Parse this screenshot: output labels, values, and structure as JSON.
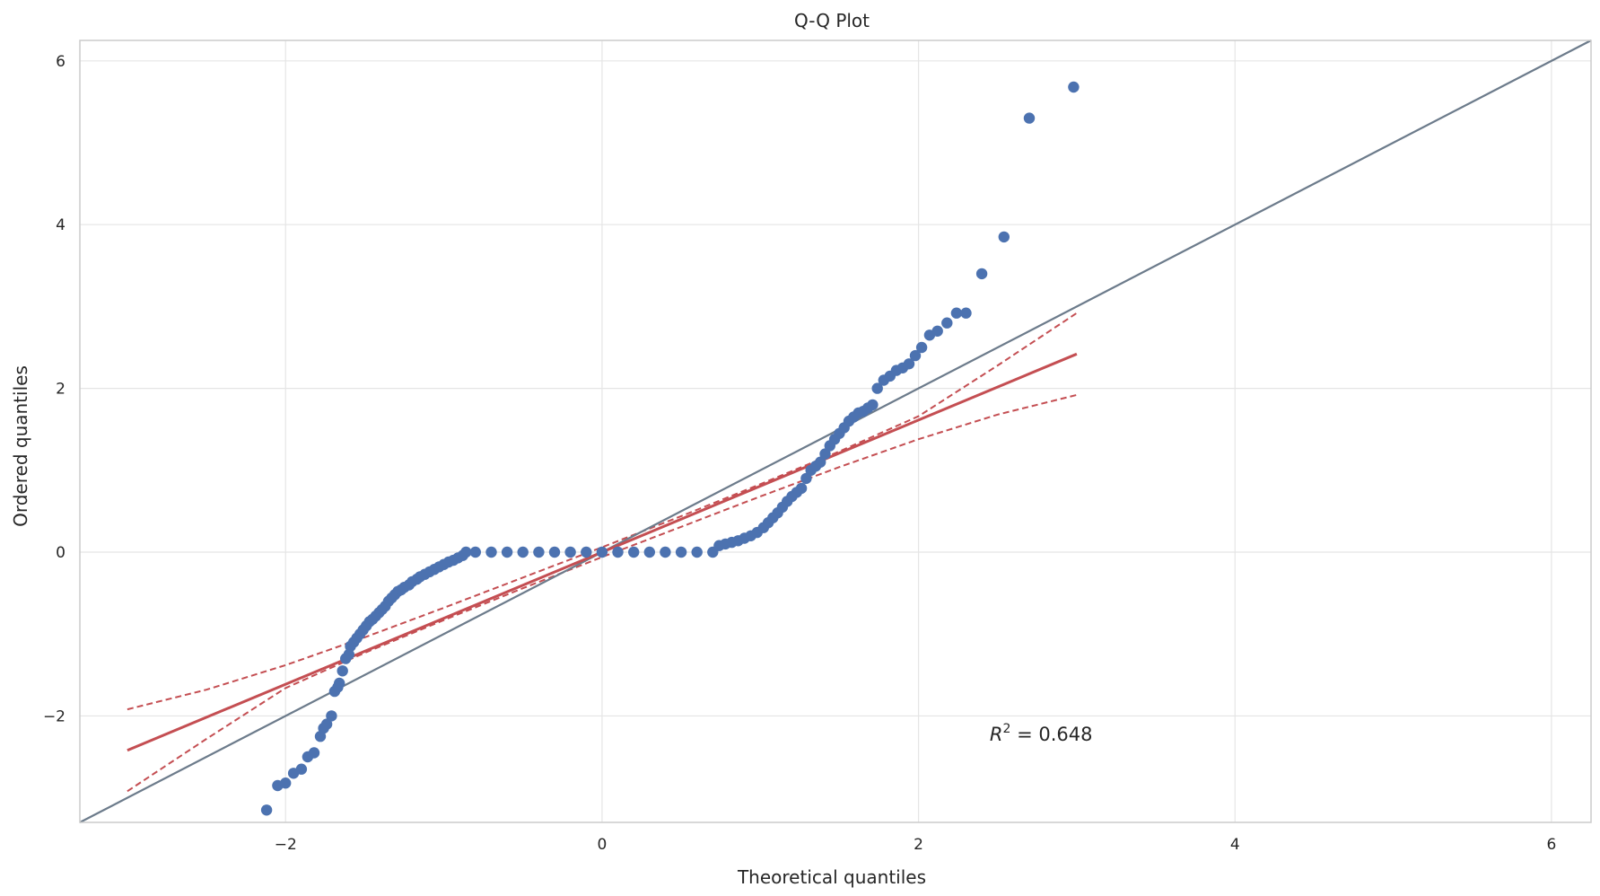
{
  "chart_data": {
    "type": "scatter",
    "title": "Q-Q Plot",
    "xlabel": "Theoretical quantiles",
    "ylabel": "Ordered quantiles",
    "xlim": [
      -3.3,
      6.25
    ],
    "ylim": [
      -3.3,
      6.25
    ],
    "x_ticks": [
      -2,
      0,
      2,
      4,
      6
    ],
    "y_ticks": [
      -2,
      0,
      2,
      4,
      6
    ],
    "x_tick_labels": [
      "−2",
      "0",
      "2",
      "4",
      "6"
    ],
    "y_tick_labels": [
      "−2",
      "0",
      "2",
      "4",
      "6"
    ],
    "grid": true,
    "annotation": {
      "label": "R",
      "superscript": "2",
      "text": " = 0.648",
      "x": 2.45,
      "y": -2.3
    },
    "colors": {
      "points": "#4c72b0",
      "fit_line": "#c44e52",
      "identity_line": "#6c7b8b",
      "grid": "#e5e5e5",
      "spine": "#cccccc"
    },
    "identity_line": {
      "x": [
        -3.3,
        6.25
      ],
      "y": [
        -3.3,
        6.25
      ]
    },
    "fit_line": {
      "x": [
        -3.0,
        3.0
      ],
      "y": [
        -2.42,
        2.42
      ]
    },
    "confidence_band": {
      "x": [
        -3.0,
        -2.5,
        -2.0,
        -1.5,
        -1.0,
        -0.5,
        0.0,
        0.5,
        1.0,
        1.5,
        2.0,
        2.5,
        3.0
      ],
      "upper": [
        -1.92,
        -1.68,
        -1.38,
        -1.04,
        -0.68,
        -0.31,
        0.06,
        0.44,
        0.83,
        1.23,
        1.66,
        2.28,
        2.92
      ],
      "lower": [
        -2.92,
        -2.28,
        -1.66,
        -1.23,
        -0.83,
        -0.44,
        -0.06,
        0.31,
        0.68,
        1.04,
        1.38,
        1.68,
        1.92
      ]
    },
    "points": {
      "x": [
        -2.12,
        -2.05,
        -2.0,
        -1.95,
        -1.9,
        -1.86,
        -1.82,
        -1.78,
        -1.76,
        -1.74,
        -1.71,
        -1.69,
        -1.67,
        -1.66,
        -1.64,
        -1.62,
        -1.6,
        -1.59,
        -1.57,
        -1.55,
        -1.53,
        -1.51,
        -1.49,
        -1.47,
        -1.45,
        -1.43,
        -1.41,
        -1.39,
        -1.37,
        -1.35,
        -1.33,
        -1.31,
        -1.29,
        -1.27,
        -1.25,
        -1.22,
        -1.2,
        -1.17,
        -1.15,
        -1.12,
        -1.09,
        -1.06,
        -1.03,
        -1.0,
        -0.97,
        -0.94,
        -0.91,
        -0.88,
        -0.86,
        -0.8,
        -0.7,
        -0.6,
        -0.5,
        -0.4,
        -0.3,
        -0.2,
        -0.1,
        0.0,
        0.1,
        0.2,
        0.3,
        0.4,
        0.5,
        0.6,
        0.7,
        0.74,
        0.78,
        0.82,
        0.86,
        0.9,
        0.94,
        0.98,
        1.02,
        1.05,
        1.08,
        1.11,
        1.14,
        1.17,
        1.2,
        1.23,
        1.26,
        1.29,
        1.32,
        1.35,
        1.38,
        1.41,
        1.44,
        1.47,
        1.5,
        1.53,
        1.56,
        1.59,
        1.62,
        1.65,
        1.68,
        1.71,
        1.74,
        1.78,
        1.82,
        1.86,
        1.9,
        1.94,
        1.98,
        2.02,
        2.07,
        2.12,
        2.18,
        2.24,
        2.3,
        2.4,
        2.54,
        2.7,
        2.98
      ],
      "y": [
        -3.15,
        -2.85,
        -2.82,
        -2.7,
        -2.65,
        -2.5,
        -2.45,
        -2.25,
        -2.15,
        -2.1,
        -2.0,
        -1.7,
        -1.65,
        -1.6,
        -1.45,
        -1.3,
        -1.25,
        -1.15,
        -1.1,
        -1.05,
        -1.0,
        -0.95,
        -0.9,
        -0.85,
        -0.82,
        -0.78,
        -0.74,
        -0.7,
        -0.66,
        -0.6,
        -0.56,
        -0.52,
        -0.48,
        -0.46,
        -0.43,
        -0.4,
        -0.36,
        -0.33,
        -0.3,
        -0.27,
        -0.24,
        -0.21,
        -0.18,
        -0.15,
        -0.12,
        -0.1,
        -0.07,
        -0.04,
        0.0,
        0.0,
        0.0,
        0.0,
        0.0,
        0.0,
        0.0,
        0.0,
        0.0,
        0.0,
        0.0,
        0.0,
        0.0,
        0.0,
        0.0,
        0.0,
        0.0,
        0.08,
        0.1,
        0.12,
        0.14,
        0.17,
        0.2,
        0.24,
        0.3,
        0.36,
        0.42,
        0.48,
        0.55,
        0.62,
        0.68,
        0.73,
        0.78,
        0.9,
        1.0,
        1.05,
        1.1,
        1.2,
        1.3,
        1.38,
        1.45,
        1.52,
        1.6,
        1.65,
        1.7,
        1.72,
        1.76,
        1.8,
        2.0,
        2.1,
        2.15,
        2.22,
        2.25,
        2.3,
        2.4,
        2.5,
        2.65,
        2.7,
        2.8,
        2.92,
        2.92,
        3.4,
        3.85,
        5.3,
        5.68
      ]
    }
  }
}
